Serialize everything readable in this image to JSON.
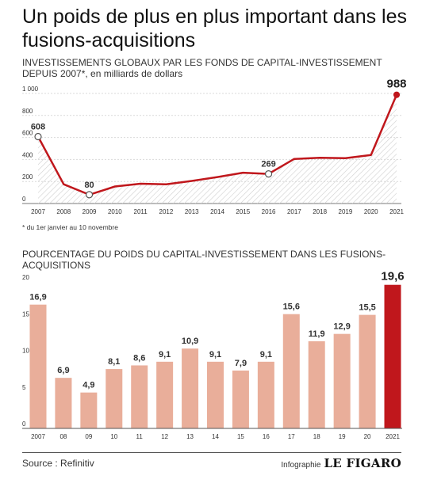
{
  "headline": "Un poids de plus en plus important dans les fusions-acquisitions",
  "chart1": {
    "title_caps": "INVESTISSEMENTS GLOBAUX PAR LES FONDS DE CAPITAL-INVESTISSEMENT DEPUIS 2007*",
    "title_rest": ", en milliards de dollars",
    "footnote": "* du 1er janvier au 10 novembre"
  },
  "chart2": {
    "title": "POURCENTAGE DU POIDS DU CAPITAL-INVESTISSEMENT DANS LES FUSIONS-ACQUISITIONS"
  },
  "footer": {
    "source": "Source : Refinitiv",
    "credit_label": "Infographie",
    "brand": "LE FIGARO"
  },
  "colors": {
    "line": "#c0171c",
    "bar": "#e9ae9a",
    "bar_highlight": "#c0171c",
    "area_hatch": "#cfcfcf"
  },
  "chart_data": [
    {
      "type": "area",
      "title": "INVESTISSEMENTS GLOBAUX PAR LES FONDS DE CAPITAL-INVESTISSEMENT DEPUIS 2007*, en milliards de dollars",
      "x": [
        "2007",
        "2008",
        "2009",
        "2010",
        "2011",
        "2012",
        "2013",
        "2014",
        "2015",
        "2016",
        "2017",
        "2018",
        "2019",
        "2020",
        "2021"
      ],
      "x_tick_labels": [
        "2007",
        "2008",
        "2009",
        "2010",
        "2011",
        "2012",
        "2013",
        "2014",
        "2015",
        "2016",
        "2017",
        "2018",
        "2019",
        "2020",
        "2021"
      ],
      "values": [
        608,
        175,
        80,
        155,
        180,
        175,
        205,
        240,
        280,
        269,
        405,
        415,
        412,
        440,
        988
      ],
      "ylim": [
        0,
        1000
      ],
      "y_ticks": [
        0,
        200,
        400,
        600,
        800,
        1000
      ],
      "y_tick_labels": [
        "0",
        "200",
        "400",
        "600",
        "800",
        "1 000"
      ],
      "labeled_points": [
        {
          "index": 0,
          "label": "608"
        },
        {
          "index": 2,
          "label": "80"
        },
        {
          "index": 9,
          "label": "269"
        },
        {
          "index": 14,
          "label": "988"
        }
      ],
      "grid": true
    },
    {
      "type": "bar",
      "title": "POURCENTAGE DU POIDS DU CAPITAL-INVESTISSEMENT DANS LES FUSIONS-ACQUISITIONS",
      "categories": [
        "2007",
        "08",
        "09",
        "10",
        "11",
        "12",
        "13",
        "14",
        "15",
        "16",
        "17",
        "18",
        "19",
        "20",
        "2021"
      ],
      "values": [
        16.9,
        6.9,
        4.9,
        8.1,
        8.6,
        9.1,
        10.9,
        9.1,
        7.9,
        9.1,
        15.6,
        11.9,
        12.9,
        15.5,
        19.6
      ],
      "value_labels": [
        "16,9",
        "6,9",
        "4,9",
        "8,1",
        "8,6",
        "9,1",
        "10,9",
        "9,1",
        "7,9",
        "9,1",
        "15,6",
        "11,9",
        "12,9",
        "15,5",
        "19,6"
      ],
      "highlight_index": 14,
      "ylim": [
        0,
        20
      ],
      "y_ticks": [
        0,
        5,
        10,
        15,
        20
      ],
      "y_tick_labels": [
        "0",
        "5",
        "10",
        "15",
        "20"
      ],
      "grid": false
    }
  ]
}
